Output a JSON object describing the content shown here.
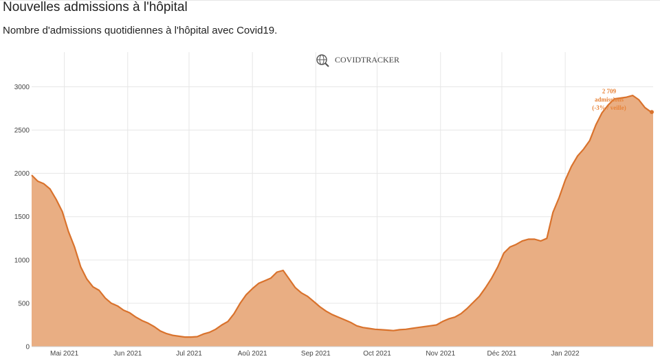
{
  "header": {
    "title": "Nouvelles admissions à l'hôpital",
    "subtitle": "Nombre d'admissions quotidiennes à l'hôpital avec Covid19."
  },
  "watermark": {
    "text": "COVIDTRACKER",
    "icon": "globe-magnifier-icon"
  },
  "colors": {
    "line": "#d9722c",
    "fill": "#e9ae83",
    "grid": "#e6e6e6",
    "annotation": "#e8843a"
  },
  "chart_data": {
    "type": "area",
    "title": "Nouvelles admissions à l'hôpital",
    "subtitle": "Nombre d'admissions quotidiennes à l'hôpital avec Covid19.",
    "xlabel": "",
    "ylabel": "",
    "ylim": [
      0,
      3400
    ],
    "xlim": [
      "2021-04-15",
      "2022-02-13"
    ],
    "grid": true,
    "legend": "none",
    "y_ticks": [
      0,
      500,
      1000,
      1500,
      2000,
      2500,
      3000
    ],
    "y_tick_labels": [
      "0",
      "500",
      "1000",
      "1500",
      "2000",
      "2500",
      "3000"
    ],
    "x_ticks": [
      "2021-05-01",
      "2021-06-01",
      "2021-07-01",
      "2021-08-01",
      "2021-09-01",
      "2021-10-01",
      "2021-11-01",
      "2021-12-01",
      "2022-01-01"
    ],
    "x_tick_labels": [
      "Mai 2021",
      "Jun 2021",
      "Jul 2021",
      "Aoû 2021",
      "Sep 2021",
      "Oct 2021",
      "Nov 2021",
      "Déc 2021",
      "Jan 2022"
    ],
    "series": [
      {
        "x": [
          "2021-04-15",
          "2021-04-18",
          "2021-04-21",
          "2021-04-24",
          "2021-04-27",
          "2021-04-30",
          "2021-05-03",
          "2021-05-06",
          "2021-05-09",
          "2021-05-12",
          "2021-05-15",
          "2021-05-18",
          "2021-05-21",
          "2021-05-24",
          "2021-05-27",
          "2021-05-30",
          "2021-06-02",
          "2021-06-05",
          "2021-06-08",
          "2021-06-11",
          "2021-06-14",
          "2021-06-17",
          "2021-06-20",
          "2021-06-23",
          "2021-06-26",
          "2021-06-29",
          "2021-07-02",
          "2021-07-05",
          "2021-07-08",
          "2021-07-11",
          "2021-07-14",
          "2021-07-17",
          "2021-07-20",
          "2021-07-23",
          "2021-07-26",
          "2021-07-29",
          "2021-08-01",
          "2021-08-04",
          "2021-08-07",
          "2021-08-10",
          "2021-08-13",
          "2021-08-16",
          "2021-08-19",
          "2021-08-22",
          "2021-08-25",
          "2021-08-28",
          "2021-08-31",
          "2021-09-03",
          "2021-09-06",
          "2021-09-09",
          "2021-09-12",
          "2021-09-15",
          "2021-09-18",
          "2021-09-21",
          "2021-09-24",
          "2021-09-27",
          "2021-09-30",
          "2021-10-03",
          "2021-10-06",
          "2021-10-09",
          "2021-10-12",
          "2021-10-15",
          "2021-10-18",
          "2021-10-21",
          "2021-10-24",
          "2021-10-27",
          "2021-10-30",
          "2021-11-02",
          "2021-11-05",
          "2021-11-08",
          "2021-11-11",
          "2021-11-14",
          "2021-11-17",
          "2021-11-20",
          "2021-11-23",
          "2021-11-26",
          "2021-11-29",
          "2021-12-02",
          "2021-12-05",
          "2021-12-08",
          "2021-12-11",
          "2021-12-14",
          "2021-12-17",
          "2021-12-20",
          "2021-12-23",
          "2021-12-26",
          "2021-12-29",
          "2022-01-01",
          "2022-01-04",
          "2022-01-07",
          "2022-01-10",
          "2022-01-13",
          "2022-01-16",
          "2022-01-19",
          "2022-01-22",
          "2022-01-25",
          "2022-01-28",
          "2022-01-31",
          "2022-02-03",
          "2022-02-06",
          "2022-02-09",
          "2022-02-12",
          "2022-02-13"
        ],
        "y": [
          1980,
          1910,
          1880,
          1820,
          1700,
          1560,
          1330,
          1150,
          920,
          780,
          690,
          650,
          560,
          500,
          470,
          420,
          390,
          340,
          300,
          270,
          230,
          180,
          150,
          130,
          120,
          110,
          110,
          115,
          145,
          165,
          200,
          250,
          290,
          380,
          500,
          600,
          670,
          730,
          760,
          790,
          860,
          880,
          780,
          680,
          620,
          580,
          520,
          460,
          410,
          370,
          340,
          310,
          280,
          240,
          220,
          210,
          200,
          195,
          190,
          185,
          195,
          200,
          210,
          220,
          230,
          240,
          250,
          290,
          320,
          340,
          380,
          440,
          510,
          580,
          680,
          790,
          920,
          1080,
          1150,
          1180,
          1220,
          1240,
          1240,
          1220,
          1250,
          1550,
          1720,
          1920,
          2080,
          2200,
          2280,
          2380,
          2560,
          2700,
          2790,
          2860,
          2870,
          2880,
          2900,
          2850,
          2760,
          2709,
          2709
        ]
      }
    ],
    "annotations": [
      {
        "x": "2022-02-13",
        "y": 2709,
        "lines": [
          "2 709",
          "admissions",
          "(-3% / veille)"
        ]
      }
    ]
  }
}
